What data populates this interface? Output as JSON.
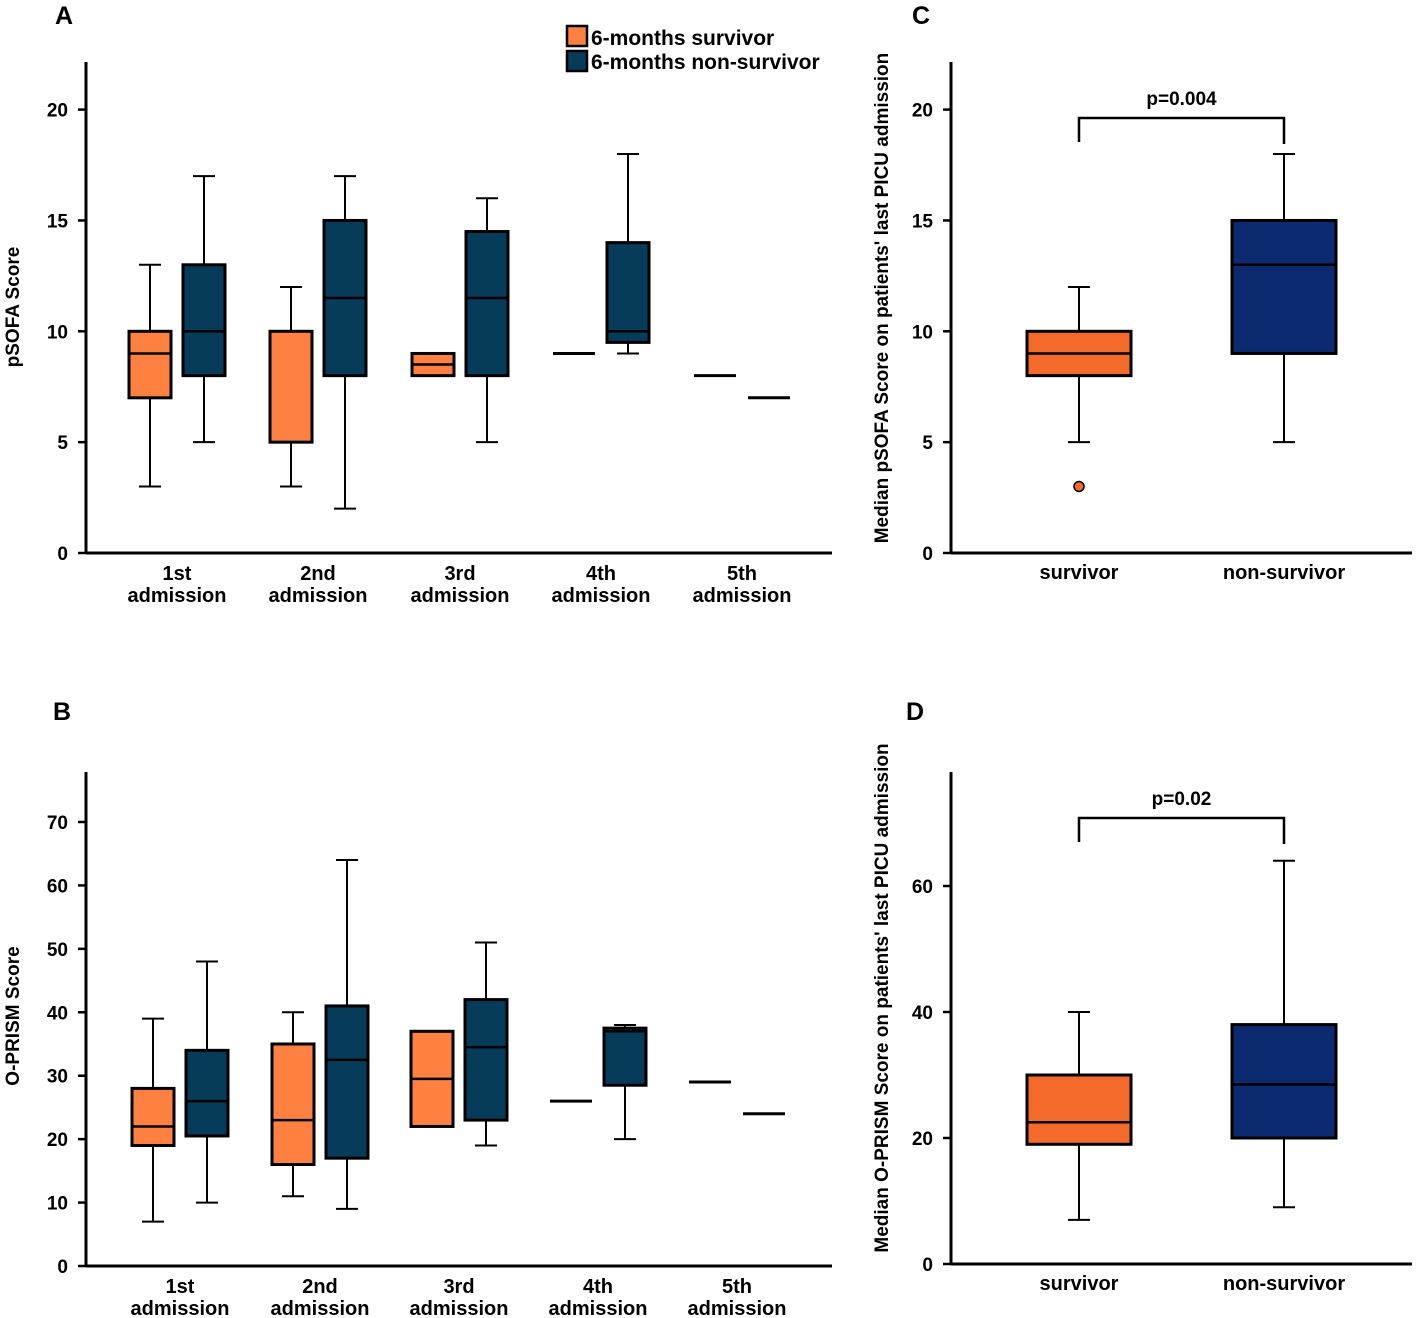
{
  "legend": {
    "survivor_label": "6-months survivor",
    "nonsurvivor_label": "6-months non-survivor"
  },
  "colors": {
    "survivor_A": "#ff8040",
    "nonsurvivor_A": "#073b5a",
    "survivor_C": "#f36a2a",
    "nonsurvivor_C": "#0c2a70"
  },
  "chart_data": [
    {
      "panel": "A",
      "type": "box",
      "ylabel": "pSOFA Score",
      "ylim": [
        0,
        22
      ],
      "yticks": [
        0,
        5,
        10,
        15,
        20
      ],
      "categories": [
        [
          "1st",
          "admission"
        ],
        [
          "2nd",
          "admission"
        ],
        [
          "3rd",
          "admission"
        ],
        [
          "4th",
          "admission"
        ],
        [
          "5th",
          "admission"
        ]
      ],
      "series": [
        {
          "name": "6-months survivor",
          "boxes": [
            {
              "min": 3,
              "q1": 7,
              "median": 9,
              "q3": 10,
              "max": 13
            },
            {
              "min": 3,
              "q1": 5,
              "median": 10,
              "q3": 10,
              "max": 12
            },
            {
              "min": 8,
              "q1": 8,
              "median": 8.5,
              "q3": 9,
              "max": 9
            },
            {
              "min": 9,
              "q1": 9,
              "median": 9,
              "q3": 9,
              "max": 9
            },
            {
              "min": 8,
              "q1": 8,
              "median": 8,
              "q3": 8,
              "max": 8
            }
          ]
        },
        {
          "name": "6-months non-survivor",
          "boxes": [
            {
              "min": 5,
              "q1": 8,
              "median": 10,
              "q3": 13,
              "max": 17
            },
            {
              "min": 2,
              "q1": 8,
              "median": 11.5,
              "q3": 15,
              "max": 17
            },
            {
              "min": 5,
              "q1": 8,
              "median": 11.5,
              "q3": 14.5,
              "max": 16
            },
            {
              "min": 9,
              "q1": 9.5,
              "median": 10,
              "q3": 14,
              "max": 18
            },
            {
              "min": 7,
              "q1": 7,
              "median": 7,
              "q3": 7,
              "max": 7
            }
          ]
        }
      ]
    },
    {
      "panel": "B",
      "type": "box",
      "ylabel": "O-PRISM Score",
      "ylim": [
        0,
        78
      ],
      "yticks": [
        0,
        10,
        20,
        30,
        40,
        50,
        60,
        70
      ],
      "categories": [
        [
          "1st",
          "admission"
        ],
        [
          "2nd",
          "admission"
        ],
        [
          "3rd",
          "admission"
        ],
        [
          "4th",
          "admission"
        ],
        [
          "5th",
          "admission"
        ]
      ],
      "series": [
        {
          "name": "6-months survivor",
          "boxes": [
            {
              "min": 7,
              "q1": 19,
              "median": 22,
              "q3": 28,
              "max": 39
            },
            {
              "min": 11,
              "q1": 16,
              "median": 23,
              "q3": 35,
              "max": 40
            },
            {
              "min": 22,
              "q1": 22,
              "median": 29.5,
              "q3": 37,
              "max": 37
            },
            {
              "min": 26,
              "q1": 26,
              "median": 26,
              "q3": 26,
              "max": 26
            },
            {
              "min": 29,
              "q1": 29,
              "median": 29,
              "q3": 29,
              "max": 29
            }
          ]
        },
        {
          "name": "6-months non-survivor",
          "boxes": [
            {
              "min": 10,
              "q1": 20.5,
              "median": 26,
              "q3": 34,
              "max": 48
            },
            {
              "min": 9,
              "q1": 17,
              "median": 32.5,
              "q3": 41,
              "max": 64
            },
            {
              "min": 19,
              "q1": 23,
              "median": 34.5,
              "q3": 42,
              "max": 51
            },
            {
              "min": 20,
              "q1": 28.5,
              "median": 37,
              "q3": 37.5,
              "max": 38
            },
            {
              "min": 24,
              "q1": 24,
              "median": 24,
              "q3": 24,
              "max": 24
            }
          ]
        }
      ]
    },
    {
      "panel": "C",
      "type": "box",
      "ylabel": "Median pSOFA Score on patients' last PICU admission",
      "ylim": [
        0,
        22
      ],
      "yticks": [
        0,
        5,
        10,
        15,
        20
      ],
      "categories": [
        "survivor",
        "non-survivor"
      ],
      "boxes": [
        {
          "min": 5,
          "q1": 8,
          "median": 9,
          "q3": 10,
          "max": 12,
          "outliers": [
            3
          ]
        },
        {
          "min": 5,
          "q1": 9,
          "median": 13,
          "q3": 15,
          "max": 18,
          "outliers": []
        }
      ],
      "annotation": "p=0.004"
    },
    {
      "panel": "D",
      "type": "box",
      "ylabel": "Median O-PRISM Score on patients' last PICU admission",
      "ylim": [
        0,
        78
      ],
      "yticks": [
        0,
        20,
        40,
        60
      ],
      "categories": [
        "survivor",
        "non-survivor"
      ],
      "boxes": [
        {
          "min": 7,
          "q1": 19,
          "median": 22.5,
          "q3": 30,
          "max": 40,
          "outliers": []
        },
        {
          "min": 9,
          "q1": 20,
          "median": 28.5,
          "q3": 38,
          "max": 64,
          "outliers": []
        }
      ],
      "annotation": "p=0.02"
    }
  ]
}
